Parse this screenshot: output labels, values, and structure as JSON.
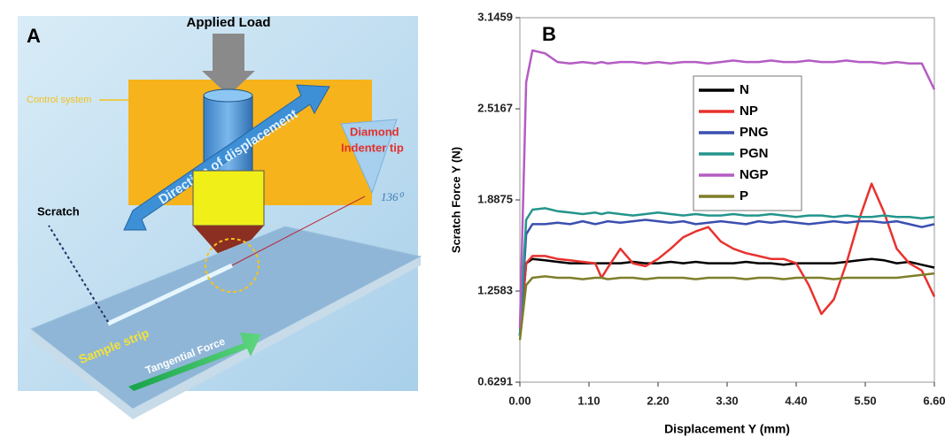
{
  "diagram": {
    "panel": "A",
    "load": "Applied Load",
    "control": "Control system",
    "direction": "Direction of displacement",
    "tip": [
      "Diamond",
      "Indenter tip"
    ],
    "angle": "136⁰",
    "scratch": "Scratch",
    "strip": "Sample strip",
    "force": "Tangential Force"
  },
  "chart_data": {
    "type": "line",
    "title": "B",
    "x_label": "Displacement Y (mm)",
    "y_label": "Scratch Force Y  (N)",
    "xlim": [
      0,
      6.6
    ],
    "ylim": [
      0.6291,
      3.1459
    ],
    "xticks": [
      {
        "value": 0,
        "label": "0.00"
      },
      {
        "value": 1.1,
        "label": "1.10"
      },
      {
        "value": 2.2,
        "label": "2.20"
      },
      {
        "value": 3.3,
        "label": "3.30"
      },
      {
        "value": 4.4,
        "label": "4.40"
      },
      {
        "value": 5.5,
        "label": "5.50"
      },
      {
        "value": 6.6,
        "label": "6.60"
      }
    ],
    "yticks": [
      0.6291,
      1.2583,
      1.8875,
      2.5167,
      3.1459
    ],
    "x": [
      0,
      0.1,
      0.2,
      0.4,
      0.6,
      0.8,
      1.0,
      1.2,
      1.3,
      1.4,
      1.6,
      1.8,
      2.0,
      2.2,
      2.4,
      2.6,
      2.8,
      3.0,
      3.2,
      3.4,
      3.6,
      3.8,
      4.0,
      4.2,
      4.4,
      4.6,
      4.8,
      5.0,
      5.2,
      5.4,
      5.6,
      5.8,
      6.0,
      6.2,
      6.4,
      6.6
    ],
    "series": [
      {
        "name": "N",
        "color": "#000000",
        "values": [
          0.95,
          1.45,
          1.48,
          1.47,
          1.46,
          1.45,
          1.45,
          1.45,
          1.45,
          1.45,
          1.45,
          1.46,
          1.45,
          1.45,
          1.46,
          1.45,
          1.46,
          1.45,
          1.45,
          1.45,
          1.46,
          1.45,
          1.45,
          1.44,
          1.45,
          1.45,
          1.45,
          1.45,
          1.46,
          1.47,
          1.48,
          1.47,
          1.45,
          1.46,
          1.44,
          1.42
        ]
      },
      {
        "name": "NP",
        "color": "#e8322e",
        "values": [
          0.95,
          1.45,
          1.5,
          1.5,
          1.48,
          1.47,
          1.46,
          1.45,
          1.35,
          1.42,
          1.55,
          1.45,
          1.43,
          1.48,
          1.55,
          1.63,
          1.67,
          1.7,
          1.6,
          1.55,
          1.52,
          1.5,
          1.48,
          1.48,
          1.45,
          1.3,
          1.1,
          1.2,
          1.45,
          1.75,
          2.0,
          1.8,
          1.55,
          1.45,
          1.4,
          1.22
        ]
      },
      {
        "name": "PNG",
        "color": "#3a4fb0",
        "values": [
          0.95,
          1.65,
          1.72,
          1.72,
          1.73,
          1.72,
          1.74,
          1.72,
          1.73,
          1.74,
          1.73,
          1.74,
          1.75,
          1.74,
          1.73,
          1.74,
          1.72,
          1.73,
          1.74,
          1.73,
          1.72,
          1.74,
          1.73,
          1.74,
          1.73,
          1.72,
          1.73,
          1.74,
          1.73,
          1.74,
          1.74,
          1.73,
          1.74,
          1.72,
          1.7,
          1.72
        ]
      },
      {
        "name": "PGN",
        "color": "#23958c",
        "values": [
          0.95,
          1.75,
          1.82,
          1.83,
          1.81,
          1.8,
          1.79,
          1.8,
          1.79,
          1.8,
          1.79,
          1.78,
          1.79,
          1.8,
          1.79,
          1.78,
          1.79,
          1.78,
          1.78,
          1.79,
          1.78,
          1.78,
          1.79,
          1.78,
          1.77,
          1.78,
          1.78,
          1.77,
          1.78,
          1.77,
          1.77,
          1.78,
          1.77,
          1.77,
          1.76,
          1.77
        ]
      },
      {
        "name": "NGP",
        "color": "#b45cc4",
        "values": [
          1.0,
          2.7,
          2.92,
          2.9,
          2.84,
          2.83,
          2.84,
          2.83,
          2.84,
          2.83,
          2.84,
          2.84,
          2.83,
          2.84,
          2.83,
          2.84,
          2.84,
          2.83,
          2.84,
          2.85,
          2.84,
          2.84,
          2.85,
          2.84,
          2.84,
          2.85,
          2.84,
          2.84,
          2.85,
          2.84,
          2.84,
          2.83,
          2.84,
          2.83,
          2.83,
          2.65
        ]
      },
      {
        "name": "P",
        "color": "#7d7f2a",
        "values": [
          0.92,
          1.3,
          1.35,
          1.36,
          1.35,
          1.35,
          1.34,
          1.35,
          1.35,
          1.34,
          1.35,
          1.35,
          1.34,
          1.35,
          1.35,
          1.35,
          1.34,
          1.35,
          1.35,
          1.35,
          1.34,
          1.35,
          1.35,
          1.34,
          1.35,
          1.35,
          1.35,
          1.34,
          1.35,
          1.35,
          1.35,
          1.35,
          1.35,
          1.36,
          1.37,
          1.38
        ]
      }
    ]
  }
}
